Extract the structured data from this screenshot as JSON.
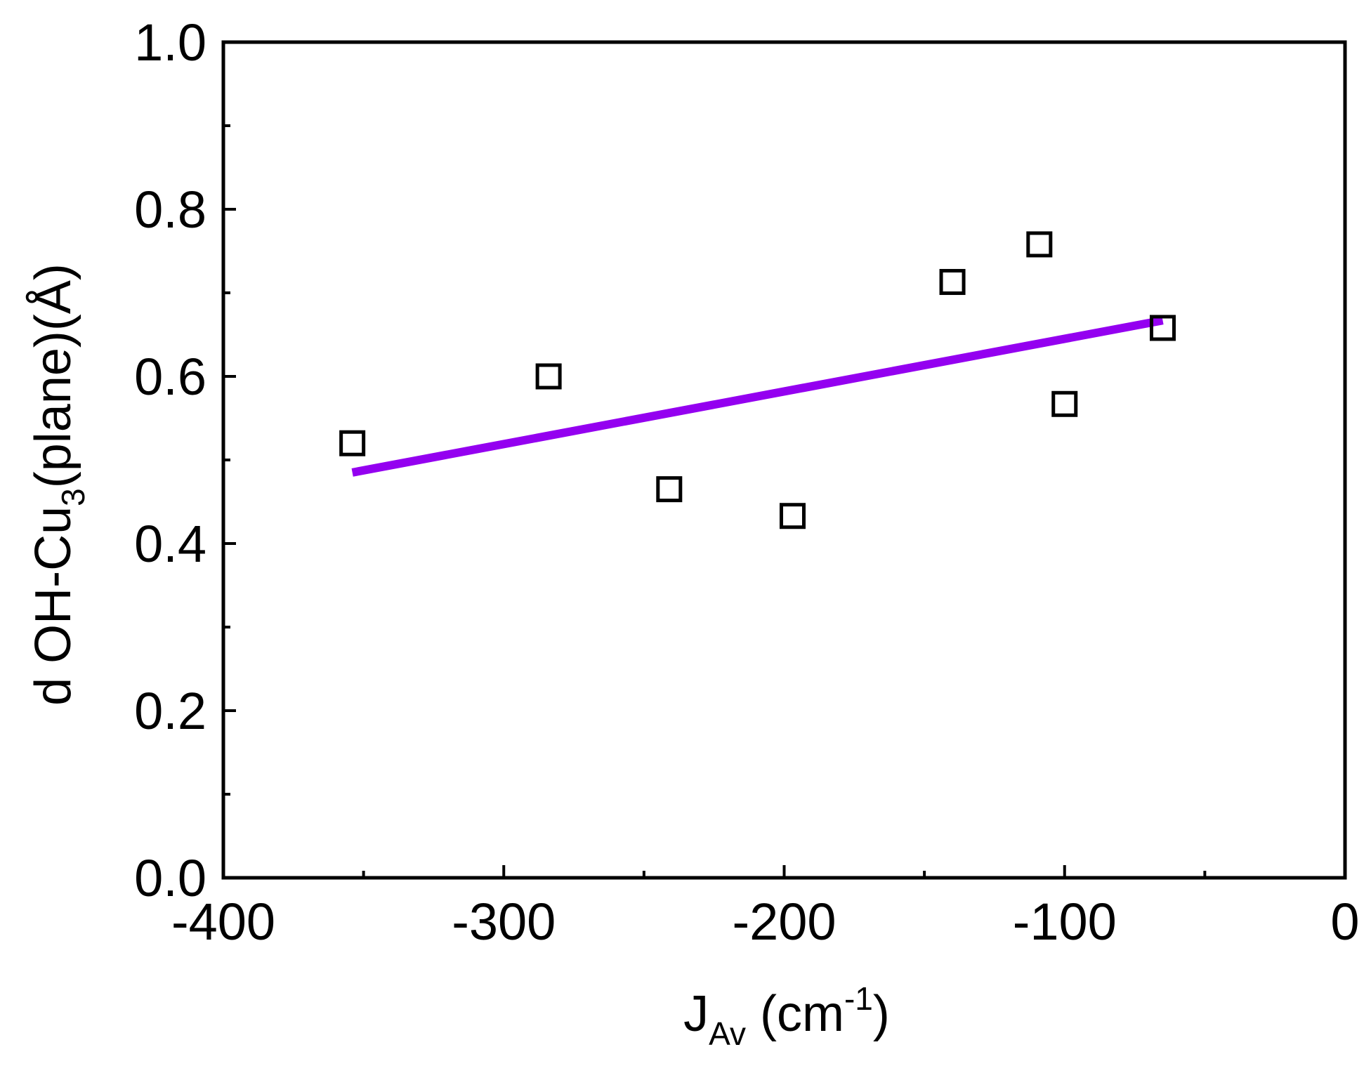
{
  "chart_data": {
    "type": "scatter",
    "xlabel": {
      "main": "J",
      "sub": "Av",
      "rest": " (cm",
      "sup": "-1",
      "end": ")"
    },
    "ylabel": {
      "main": "d OH-Cu",
      "sub": "3",
      "rest": "(plane)(Å)"
    },
    "xlim": [
      -400,
      0
    ],
    "ylim": [
      0.0,
      1.0
    ],
    "x_ticks": [
      "-400",
      "-300",
      "-200",
      "-100",
      "0"
    ],
    "y_ticks": [
      "0.0",
      "0.2",
      "0.4",
      "0.6",
      "0.8",
      "1.0"
    ],
    "x_tick_values": [
      -400,
      -300,
      -200,
      -100,
      0
    ],
    "y_tick_values": [
      0.0,
      0.2,
      0.4,
      0.6,
      0.8,
      1.0
    ],
    "x_minor_ticks": [
      -350,
      -250,
      -150,
      -50
    ],
    "y_minor_ticks": [
      0.1,
      0.3,
      0.5,
      0.7,
      0.9
    ],
    "grid": false,
    "series": [
      {
        "kind": "points",
        "marker": "open-square",
        "color": "#000000",
        "points": [
          {
            "x": -354,
            "y": 0.52
          },
          {
            "x": -284,
            "y": 0.6
          },
          {
            "x": -241,
            "y": 0.465
          },
          {
            "x": -197,
            "y": 0.433
          },
          {
            "x": -140,
            "y": 0.713
          },
          {
            "x": -109,
            "y": 0.758
          },
          {
            "x": -100,
            "y": 0.567
          },
          {
            "x": -65,
            "y": 0.658
          }
        ]
      },
      {
        "kind": "fit-line",
        "color": "#9400F0",
        "x": [
          -354,
          -65
        ],
        "y": [
          0.485,
          0.667
        ]
      }
    ]
  }
}
